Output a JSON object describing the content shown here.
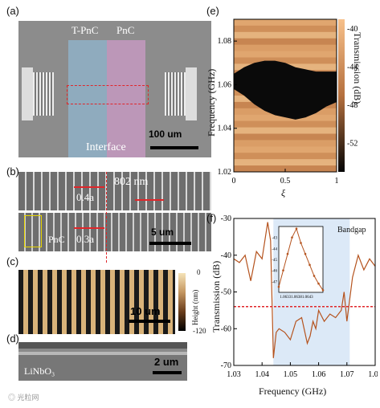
{
  "panels": {
    "a": {
      "label": "(a)",
      "tpnc": "T-PnC",
      "pnc": "PnC",
      "interface": "Interface",
      "scalebar": "100 um"
    },
    "b": {
      "label": "(b)",
      "top_ratio": "0.4a",
      "pitch": "802 nm",
      "bottom_ratio": "0.3a",
      "pnc": "PnC",
      "scalebar": "5 um"
    },
    "c": {
      "label": "(c)",
      "scalebar": "10 um",
      "colorbar_title": "Height (nm)",
      "colorbar_top": "0",
      "colorbar_bottom": "-120"
    },
    "d": {
      "label": "(d)",
      "material": "LiNbO₃",
      "scalebar": "2 um"
    },
    "e": {
      "label": "(e)"
    },
    "f": {
      "label": "(f)",
      "bandgap": "Bandgap"
    }
  },
  "colors": {
    "sem_gray": "#8a8a8a",
    "tpnc_overlay": "#8fb0c7",
    "pnc_overlay": "#c89ac3",
    "marker_red": "#e0262a",
    "bandgap_blue": "#dce9f7",
    "curve": "#b5531e",
    "scalebox_yellow": "#e6d400"
  },
  "watermark": "◎ 光粒网",
  "chart_data": [
    {
      "type": "heatmap",
      "xlabel": "ξ",
      "ylabel": "Frequency (GHz)",
      "colorbar_label": "Transmission (dB)",
      "xlim": [
        0,
        1
      ],
      "ylim": [
        1.02,
        1.09
      ],
      "x_ticks": [
        "0",
        "0.5",
        "1"
      ],
      "y_ticks": [
        "1.02",
        "1.04",
        "1.06",
        "1.08"
      ],
      "colorbar_ticks": [
        "-40",
        "-44",
        "-48",
        "-52"
      ],
      "colorbar_range": [
        -55,
        -39
      ],
      "bandgap_band": {
        "xi": [
          0,
          0.1,
          0.2,
          0.3,
          0.4,
          0.5,
          0.6,
          0.7,
          0.8,
          0.9,
          1.0
        ],
        "lower": [
          1.058,
          1.055,
          1.051,
          1.048,
          1.046,
          1.045,
          1.044,
          1.045,
          1.047,
          1.05,
          1.052
        ],
        "upper": [
          1.065,
          1.068,
          1.07,
          1.071,
          1.071,
          1.07,
          1.068,
          1.067,
          1.066,
          1.066,
          1.066
        ]
      }
    },
    {
      "type": "line",
      "xlabel": "Frequency (GHz)",
      "ylabel": "Transmission (dB)",
      "xlim": [
        1.03,
        1.08
      ],
      "ylim": [
        -70,
        -30
      ],
      "x_ticks": [
        "1.03",
        "1.04",
        "1.05",
        "1.06",
        "1.07",
        "1.08"
      ],
      "y_ticks": [
        "-30",
        "-40",
        "-50",
        "-60",
        "-70"
      ],
      "bandgap_range": [
        1.044,
        1.071
      ],
      "threshold_db": -54,
      "x": [
        1.03,
        1.032,
        1.034,
        1.036,
        1.038,
        1.04,
        1.042,
        1.043,
        1.044,
        1.045,
        1.046,
        1.048,
        1.05,
        1.052,
        1.054,
        1.056,
        1.057,
        1.058,
        1.059,
        1.06,
        1.062,
        1.064,
        1.066,
        1.068,
        1.069,
        1.07,
        1.071,
        1.072,
        1.074,
        1.076,
        1.078,
        1.08
      ],
      "y": [
        -41,
        -42,
        -40,
        -47,
        -39,
        -41,
        -31,
        -36,
        -68,
        -61,
        -60,
        -61,
        -63,
        -58,
        -57,
        -64,
        -62,
        -58,
        -60,
        -55,
        -58,
        -56,
        -57,
        -55,
        -50,
        -58,
        -52,
        -46,
        -40,
        -44,
        -41,
        -43
      ],
      "inset": {
        "x": [
          1.063,
          1.0632,
          1.0634,
          1.0636,
          1.0638,
          1.064,
          1.0642,
          1.0644,
          1.0646,
          1.0648,
          1.065
        ],
        "y": [
          -47.5,
          -46.0,
          -44.5,
          -43.0,
          -42.2,
          -43.5,
          -44.5,
          -45.5,
          -46.5,
          -47.2,
          -47.8
        ],
        "x_ticks": [
          "1.0633",
          "1.0638",
          "1.0643"
        ],
        "y_ticks": [
          "-43",
          "-44",
          "-45",
          "-46",
          "-47"
        ]
      }
    }
  ]
}
